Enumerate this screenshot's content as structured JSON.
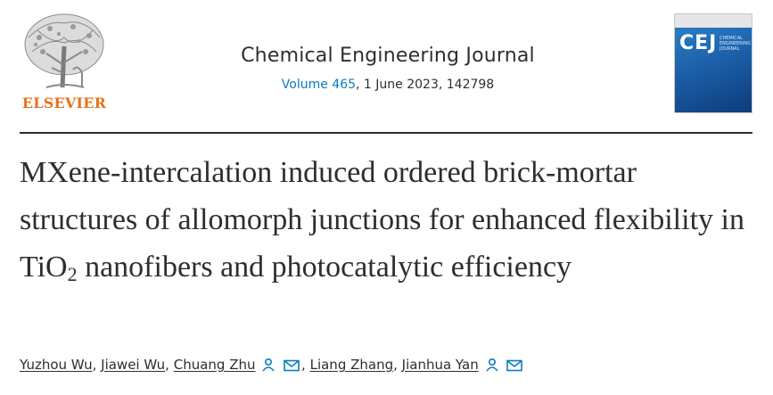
{
  "publisher": {
    "name": "ELSEVIER"
  },
  "journal": {
    "title": "Chemical Engineering Journal",
    "volume": "Volume 465",
    "details": ", 1 June 2023, 142798"
  },
  "cover": {
    "abbrev": "CEJ",
    "subtitle": "CHEMICAL ENGINEERING JOURNAL"
  },
  "article": {
    "title_part1": "MXene-intercalation induced ordered brick-mortar structures of allomorph junctions for enhanced flexibility in TiO",
    "title_sub": "2",
    "title_part2": " nanofibers and photocatalytic efficiency"
  },
  "authors": [
    {
      "name": "Yuzhou Wu",
      "sep": ", "
    },
    {
      "name": "Jiawei Wu",
      "sep": ", "
    },
    {
      "name": "Chuang Zhu",
      "sep": ", "
    },
    {
      "name": "Liang Zhang",
      "sep": ", "
    },
    {
      "name": "Jianhua Yan",
      "sep": ""
    }
  ],
  "icons": {
    "person": "person-icon",
    "mail": "mail-icon",
    "accent": "#0c7dbb",
    "brand": "#e9711c"
  }
}
